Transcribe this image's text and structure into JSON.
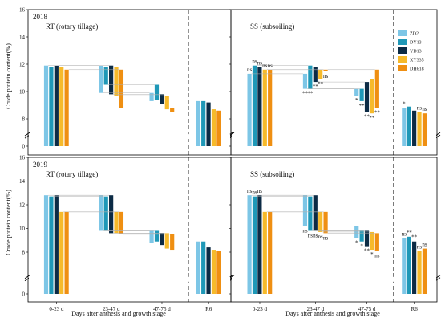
{
  "chart_data": {
    "type": "bar",
    "ylabel": "Crude protein content(%)",
    "xlabel": "Days after anthesis and growth stage",
    "categories": [
      "0-23 d",
      "23-47 d",
      "47-75 d",
      "R6"
    ],
    "yticks": [
      "0",
      "8",
      "10",
      "12",
      "14",
      "16"
    ],
    "legend": [
      "ZD2",
      "DY13",
      "YD13",
      "XY335",
      "DH618"
    ],
    "colors": {
      "ZD2": "#7dc6e6",
      "DY13": "#1f98b7",
      "YD13": "#0c2b45",
      "XY335": "#f6ba2b",
      "DH618": "#ef8f12"
    },
    "ylim": [
      0,
      16
    ],
    "axis_break": [
      0.5,
      7.5
    ],
    "panels": [
      {
        "year": "2018",
        "title": "RT (rotary tillage)",
        "values": [
          [
            11.9,
            11.8,
            11.9,
            11.8,
            11.6
          ],
          [
            9.9,
            10.5,
            9.8,
            9.7,
            8.8
          ],
          [
            9.3,
            9.4,
            9.1,
            8.7,
            8.5
          ],
          [
            9.3,
            9.3,
            9.2,
            8.7,
            8.6
          ]
        ],
        "signif": []
      },
      {
        "year": "",
        "title": "SS (subsoiling)",
        "values": [
          [
            11.3,
            11.9,
            11.8,
            11.6,
            11.6
          ],
          [
            10.2,
            10.2,
            10.7,
            10.9,
            11.6
          ],
          [
            9.7,
            9.3,
            8.5,
            8.4,
            8.8
          ],
          [
            8.8,
            8.9,
            8.6,
            8.5,
            8.4
          ]
        ],
        "signif": [
          [
            "ns",
            "ns",
            "ns",
            "ns",
            "ns"
          ],
          [
            "**",
            "**",
            "**",
            "**",
            "ns"
          ],
          [
            "*",
            "**",
            "**",
            "**",
            "**"
          ],
          [
            "*",
            "",
            "",
            "ns",
            "ns"
          ]
        ]
      },
      {
        "year": "2019",
        "title": "RT (rotary tillage)",
        "values": [
          [
            12.8,
            12.7,
            12.8,
            11.4,
            11.4
          ],
          [
            9.8,
            9.8,
            9.6,
            9.6,
            9.5
          ],
          [
            8.8,
            8.9,
            8.6,
            8.3,
            8.2
          ],
          [
            8.9,
            8.9,
            8.4,
            8.2,
            8.1
          ]
        ],
        "signif": []
      },
      {
        "year": "",
        "title": "SS (subsoiling)",
        "values": [
          [
            12.8,
            12.7,
            12.8,
            11.4,
            11.4
          ],
          [
            10.2,
            9.8,
            9.8,
            9.7,
            9.6
          ],
          [
            9.2,
            8.9,
            8.5,
            8.2,
            8.1
          ],
          [
            9.2,
            9.3,
            8.9,
            8.1,
            8.3
          ]
        ],
        "signif": [
          [
            "ns",
            "ns",
            "ns",
            "",
            ""
          ],
          [
            "ns",
            "ns",
            "ns",
            "ns",
            "ns"
          ],
          [
            "*",
            "*",
            "**",
            "*",
            "ns"
          ],
          [
            "ns",
            "**",
            "**",
            "ns",
            "ns"
          ]
        ]
      }
    ]
  }
}
